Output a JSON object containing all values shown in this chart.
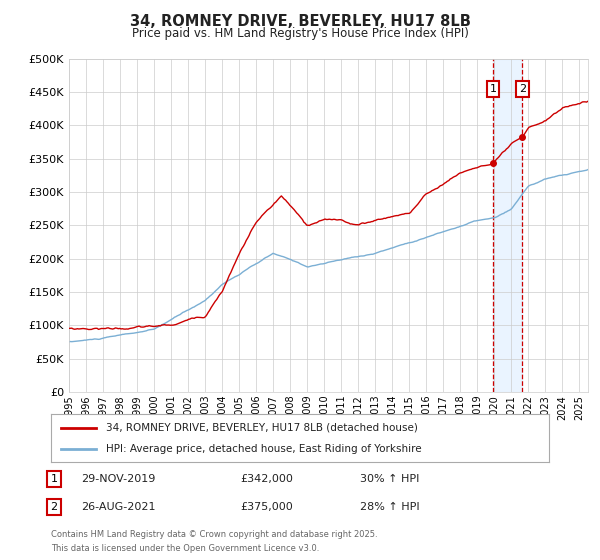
{
  "title": "34, ROMNEY DRIVE, BEVERLEY, HU17 8LB",
  "subtitle": "Price paid vs. HM Land Registry's House Price Index (HPI)",
  "ylim": [
    0,
    500000
  ],
  "ytick_vals": [
    0,
    50000,
    100000,
    150000,
    200000,
    250000,
    300000,
    350000,
    400000,
    450000,
    500000
  ],
  "legend_line1": "34, ROMNEY DRIVE, BEVERLEY, HU17 8LB (detached house)",
  "legend_line2": "HPI: Average price, detached house, East Riding of Yorkshire",
  "line1_color": "#cc0000",
  "line2_color": "#7bafd4",
  "annotation1": {
    "label": "1",
    "date": "29-NOV-2019",
    "price": "£342,000",
    "hpi": "30% ↑ HPI",
    "year": 2019.91
  },
  "annotation2": {
    "label": "2",
    "date": "26-AUG-2021",
    "price": "£375,000",
    "hpi": "28% ↑ HPI",
    "year": 2021.65
  },
  "footer_line1": "Contains HM Land Registry data © Crown copyright and database right 2025.",
  "footer_line2": "This data is licensed under the Open Government Licence v3.0.",
  "background_color": "#ffffff",
  "grid_color": "#cccccc",
  "vline_color": "#cc0000",
  "vline_shade_color": "#ddeeff"
}
